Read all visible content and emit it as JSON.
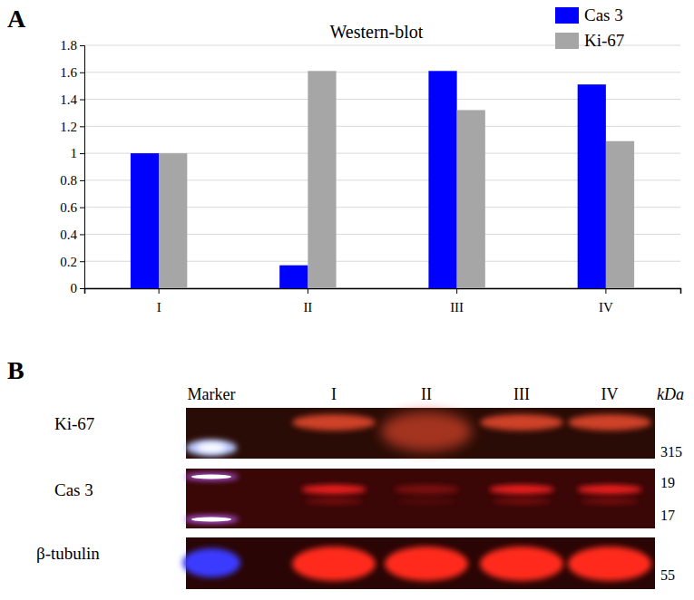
{
  "chart_data": {
    "type": "bar",
    "title": "Western-blot",
    "annotations": [
      "A"
    ],
    "categories": [
      "I",
      "II",
      "III",
      "IV"
    ],
    "series": [
      {
        "name": "Cas 3",
        "color": "#0000ff",
        "values": [
          1,
          0.17,
          1.61,
          1.51
        ]
      },
      {
        "name": "Ki-67",
        "color": "#a6a6a6",
        "values": [
          1,
          1.61,
          1.32,
          1.09
        ]
      }
    ],
    "ylim": [
      0,
      1.8
    ],
    "yticks": [
      0,
      0.2,
      0.4,
      0.6,
      0.8,
      1,
      1.2,
      1.4,
      1.6,
      1.8
    ],
    "grid": true,
    "legend": "top-right"
  },
  "blot": {
    "panel": "B",
    "lanes": [
      "Marker",
      "I",
      "II",
      "III",
      "IV"
    ],
    "unit": "kDa",
    "rows": [
      {
        "label": "Ki-67",
        "sizes": [
          315
        ]
      },
      {
        "label": "Cas 3",
        "sizes": [
          19,
          17
        ]
      },
      {
        "label": "β-tubulin",
        "sizes": [
          55
        ]
      }
    ]
  }
}
